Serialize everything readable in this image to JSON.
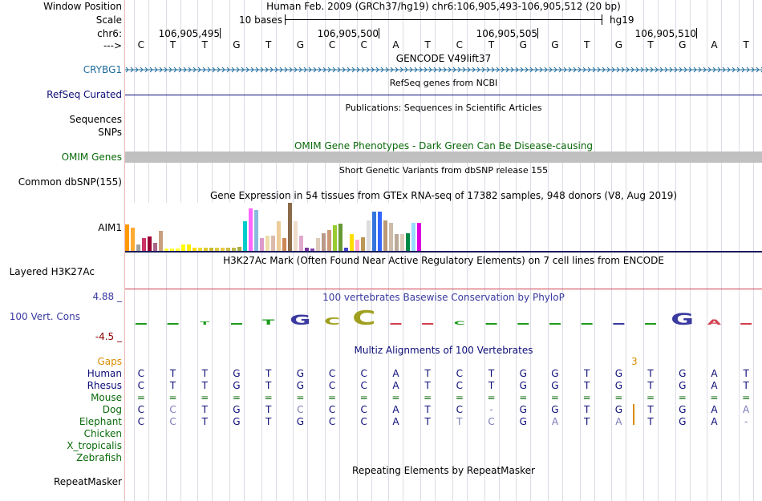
{
  "labels": {
    "window_position": "Window Position",
    "scale": "Scale",
    "chrom": "chr6:",
    "strand": "--->",
    "crybg1": "CRYBG1",
    "refseq": "RefSeq Curated",
    "sequences": "Sequences",
    "snps": "SNPs",
    "omim": "OMIM Genes",
    "dbsnp": "Common dbSNP(155)",
    "aim1": "AIM1",
    "h3k27ac": "Layered H3K27Ac",
    "cons_max": "4.88 _",
    "cons_label": "100 Vert. Cons",
    "cons_min": "-4.5 _",
    "gaps": "Gaps",
    "species": [
      "Human",
      "Rhesus",
      "Mouse",
      "Dog",
      "Elephant",
      "Chicken",
      "X_tropicalis",
      "Zebrafish"
    ],
    "repeatmasker": "RepeatMasker"
  },
  "header": {
    "assembly_position": "Human Feb. 2009 (GRCh37/hg19)   chr6:106,905,493-106,905,512 (20 bp)",
    "scale_text": "10 bases",
    "scale_db": "hg19",
    "coords": [
      "106,905,495",
      "106,905,500",
      "106,905,505",
      "106,905,510"
    ]
  },
  "sequence": [
    "C",
    "T",
    "T",
    "G",
    "T",
    "G",
    "C",
    "C",
    "A",
    "T",
    "C",
    "T",
    "G",
    "G",
    "T",
    "G",
    "T",
    "G",
    "A",
    "T"
  ],
  "tracks": {
    "gencode_title": "GENCODE V49lift37",
    "refseq_title": "RefSeq genes from NCBI",
    "publications_title": "Publications: Sequences in Scientific Articles",
    "omim_title": "OMIM Gene Phenotypes - Dark Green Can Be Disease-causing",
    "dbsnp_title": "Short Genetic Variants from dbSNP release 155",
    "gtex_title": "Gene Expression in 54 tissues from GTEx RNA-seq of 17382 samples, 948 donors (V8, Aug 2019)",
    "h3k27ac_title": "H3K27Ac Mark (Often Found Near Active Regulatory Elements) on 7 cell lines from ENCODE",
    "phylop_title": "100 vertebrates Basewise Conservation by PhyloP",
    "multiz_title": "Multiz Alignments of 100 Vertebrates",
    "gap_count": "3",
    "repeatmasker_title": "Repeating Elements by RepeatMasker"
  },
  "alignment": {
    "Human": [
      "C",
      "T",
      "T",
      "G",
      "T",
      "G",
      "C",
      "C",
      "A",
      "T",
      "C",
      "T",
      "G",
      "G",
      "T",
      "G",
      "T",
      "G",
      "A",
      "T"
    ],
    "Rhesus": [
      "C",
      "T",
      "T",
      "G",
      "T",
      "G",
      "C",
      "C",
      "A",
      "T",
      "C",
      "T",
      "G",
      "G",
      "T",
      "G",
      "T",
      "G",
      "A",
      "T"
    ],
    "Mouse": [
      "=",
      "=",
      "=",
      "=",
      "=",
      "=",
      "=",
      "=",
      "=",
      "=",
      "=",
      "=",
      "=",
      "=",
      "=",
      "=",
      "=",
      "=",
      "=",
      "="
    ],
    "Dog": [
      "C",
      "C",
      "T",
      "G",
      "T",
      "C",
      "C",
      "C",
      "A",
      "T",
      "C",
      "-",
      "G",
      "G",
      "T",
      "G",
      "T",
      "G",
      "A",
      "A"
    ],
    "Elephant": [
      "C",
      "C",
      "T",
      "G",
      "T",
      "G",
      "C",
      "C",
      "A",
      "T",
      "T",
      "C",
      "G",
      "A",
      "T",
      "A",
      "T",
      "G",
      "A",
      "-"
    ]
  },
  "colors": {
    "gencode": "#1f6b9c",
    "refseq": "#0c0c78",
    "omim": "#0a6a0a",
    "omim_bar": "#c0c0c0",
    "h3k27ac_line": "#d04050",
    "phylop_blue": "#3a3aa0",
    "cons_min": "#8b0000",
    "gaps": "#d98b00",
    "species_blue": "#0c0c78",
    "species_green": "#0a6a0a",
    "diff": "#7a7ab8",
    "border": "#e8b8b8",
    "gridline": "#dcdce6"
  },
  "gtex_expression": [
    {
      "color": "#ff9900",
      "value": 0.55
    },
    {
      "color": "#ffaa33",
      "value": 0.48
    },
    {
      "color": "#a0a0a0",
      "value": 0.14
    },
    {
      "color": "#cc3366",
      "value": 0.26
    },
    {
      "color": "#990033",
      "value": 0.3
    },
    {
      "color": "#aa6688",
      "value": 0.16
    },
    {
      "color": "#c8a080",
      "value": 0.42
    },
    {
      "color": "#ffff33",
      "value": 0.05
    },
    {
      "color": "#ffff33",
      "value": 0.05
    },
    {
      "color": "#ffff33",
      "value": 0.05
    },
    {
      "color": "#ffff00",
      "value": 0.13
    },
    {
      "color": "#ffee00",
      "value": 0.13
    },
    {
      "color": "#ffdd00",
      "value": 0.07
    },
    {
      "color": "#eedd33",
      "value": 0.07
    },
    {
      "color": "#ddcc33",
      "value": 0.07
    },
    {
      "color": "#ccbb33",
      "value": 0.07
    },
    {
      "color": "#ddcc44",
      "value": 0.07
    },
    {
      "color": "#eecc44",
      "value": 0.07
    },
    {
      "color": "#ccbb44",
      "value": 0.07
    },
    {
      "color": "#bbbb44",
      "value": 0.07
    },
    {
      "color": "#aaaa44",
      "value": 0.09
    },
    {
      "color": "#00cccc",
      "value": 0.61
    },
    {
      "color": "#ff66ff",
      "value": 0.88
    },
    {
      "color": "#88bbdd",
      "value": 0.85
    },
    {
      "color": "#dd99cc",
      "value": 0.27
    },
    {
      "color": "#eeddaa",
      "value": 0.32
    },
    {
      "color": "#ddbbaa",
      "value": 0.31
    },
    {
      "color": "#eecc99",
      "value": 0.61
    },
    {
      "color": "#cc8855",
      "value": 0.26
    },
    {
      "color": "#8b6b4a",
      "value": 1.0
    },
    {
      "color": "#eeddcc",
      "value": 0.61
    },
    {
      "color": "#ddaacc",
      "value": 0.32
    },
    {
      "color": "#773399",
      "value": 0.07
    },
    {
      "color": "#8844aa",
      "value": 0.05
    },
    {
      "color": "#ddccbb",
      "value": 0.27
    },
    {
      "color": "#bb9988",
      "value": 0.36
    },
    {
      "color": "#cc9977",
      "value": 0.43
    },
    {
      "color": "#99cc33",
      "value": 0.53
    },
    {
      "color": "#669933",
      "value": 0.56
    },
    {
      "color": "#4444cc",
      "value": 0.07
    },
    {
      "color": "#ffdd00",
      "value": 0.35
    },
    {
      "color": "#ffaacc",
      "value": 0.23
    },
    {
      "color": "#bb9955",
      "value": 0.28
    },
    {
      "color": "#dddddd",
      "value": 0.64
    },
    {
      "color": "#3377dd",
      "value": 0.82
    },
    {
      "color": "#3366ff",
      "value": 0.82
    },
    {
      "color": "#bb9977",
      "value": 0.63
    },
    {
      "color": "#ccbbaa",
      "value": 0.58
    },
    {
      "color": "#bbaa99",
      "value": 0.35
    },
    {
      "color": "#ddccbb",
      "value": 0.35
    },
    {
      "color": "#008844",
      "value": 0.36
    },
    {
      "color": "#99ddff",
      "value": 0.58
    },
    {
      "color": "#dd00dd",
      "value": 0.58
    }
  ],
  "phylop": [
    {
      "base": "-",
      "color": "#1d9a1d",
      "size": 0.1
    },
    {
      "base": "-",
      "color": "#1d9a1d",
      "size": 0.1
    },
    {
      "base": "T",
      "color": "#1d9a1d",
      "size": 0.3
    },
    {
      "base": "-",
      "color": "#1d9a1d",
      "size": 0.1
    },
    {
      "base": "T",
      "color": "#1d9a1d",
      "size": 0.5
    },
    {
      "base": "G",
      "color": "#3a3aa0",
      "size": 0.9
    },
    {
      "base": "C",
      "color": "#a0a020",
      "size": 0.7
    },
    {
      "base": "C",
      "color": "#a0a020",
      "size": 1.2
    },
    {
      "base": "-",
      "color": "#d04050",
      "size": 0.1
    },
    {
      "base": "-",
      "color": "#d04050",
      "size": 0.1
    },
    {
      "base": "C",
      "color": "#1d9a1d",
      "size": 0.35
    },
    {
      "base": "-",
      "color": "#1d9a1d",
      "size": 0.1
    },
    {
      "base": "-",
      "color": "#1d9a1d",
      "size": 0.1
    },
    {
      "base": "-",
      "color": "#1d9a1d",
      "size": 0.1
    },
    {
      "base": "-",
      "color": "#1d9a1d",
      "size": 0.1
    },
    {
      "base": "-",
      "color": "#3a3aa0",
      "size": 0.2
    },
    {
      "base": "-",
      "color": "#1d9a1d",
      "size": 0.1
    },
    {
      "base": "G",
      "color": "#3a3aa0",
      "size": 1.0
    },
    {
      "base": "A",
      "color": "#d04050",
      "size": 0.5
    },
    {
      "base": "-",
      "color": "#d04050",
      "size": 0.1
    }
  ]
}
